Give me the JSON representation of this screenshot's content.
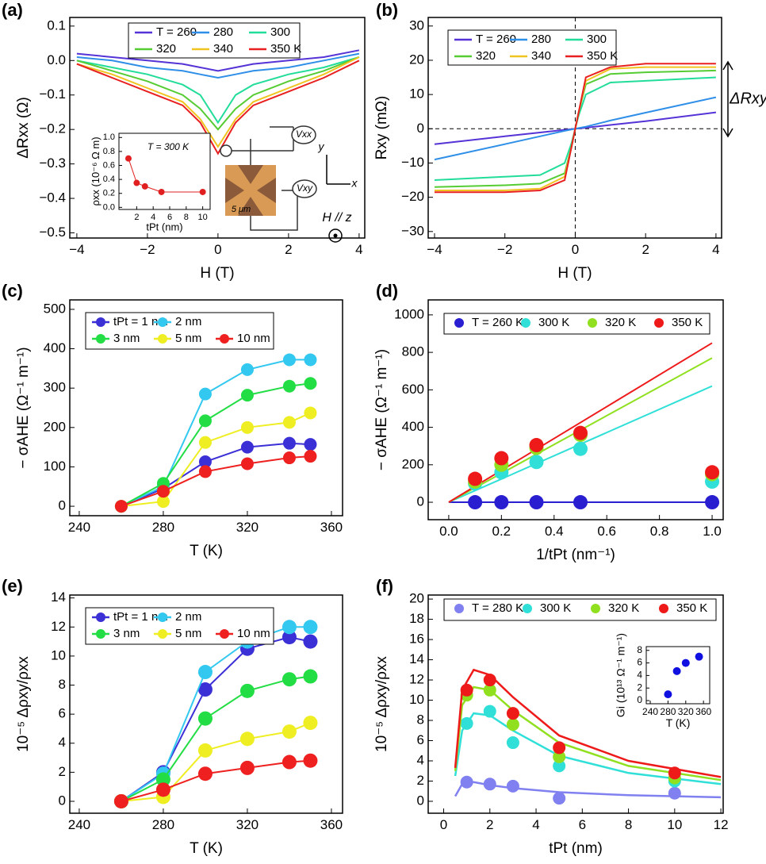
{
  "chart_data": [
    {
      "type": "line",
      "panel": "(a)",
      "xlabel": "H (T)",
      "ylabel": "ΔRxx (Ω)",
      "xlim": [
        -4.2,
        4.16
      ],
      "ylim": [
        -0.515,
        0.125
      ],
      "xticks": [
        {
          "value": -4,
          "label": "−4"
        },
        {
          "value": -2,
          "label": "−2"
        },
        0,
        2,
        4
      ],
      "yticks": [
        0.1,
        {
          "value": 0,
          "label": "0.0"
        },
        {
          "value": -0.1,
          "label": "−0.1"
        },
        {
          "value": -0.2,
          "label": "−0.2"
        },
        {
          "value": -0.3,
          "label": "−0.3"
        },
        {
          "value": -0.4,
          "label": "−0.4"
        },
        {
          "value": -0.5,
          "label": "−0.5"
        }
      ],
      "x": [
        -4,
        -3,
        -2,
        -1,
        -0.5,
        0,
        0.5,
        1,
        2,
        3,
        4
      ],
      "series": [
        {
          "name": "T = 260",
          "color": "#5533d6",
          "values": [
            0.02,
            0.01,
            0,
            -0.01,
            -0.02,
            -0.03,
            -0.02,
            -0.01,
            0,
            0.01,
            0.03
          ]
        },
        {
          "name": "280",
          "color": "#2f8fe8",
          "values": [
            0.01,
            0,
            -0.02,
            -0.03,
            -0.04,
            -0.05,
            -0.04,
            -0.03,
            -0.02,
            0,
            0.02
          ]
        },
        {
          "name": "300",
          "color": "#22dd99",
          "values": [
            0,
            -0.02,
            -0.04,
            -0.07,
            -0.1,
            -0.18,
            -0.1,
            -0.07,
            -0.04,
            -0.02,
            0.01
          ]
        },
        {
          "name": "320",
          "color": "#55cc33",
          "values": [
            0,
            -0.03,
            -0.06,
            -0.1,
            -0.14,
            -0.2,
            -0.14,
            -0.1,
            -0.06,
            -0.03,
            0.01
          ]
        },
        {
          "name": "340",
          "color": "#f0c420",
          "values": [
            -0.01,
            -0.04,
            -0.08,
            -0.12,
            -0.17,
            -0.25,
            -0.17,
            -0.12,
            -0.08,
            -0.04,
            0.01
          ]
        },
        {
          "name": "350 K",
          "color": "#e82020",
          "values": [
            -0.01,
            -0.05,
            -0.09,
            -0.13,
            -0.18,
            -0.27,
            -0.18,
            -0.13,
            -0.09,
            -0.05,
            0
          ]
        }
      ],
      "annotations": [
        "Vxx",
        "Vxy",
        "5 μm",
        "y",
        "x",
        "H // z"
      ],
      "inset": {
        "type": "line",
        "markers": true,
        "xlabel": "tPt (nm)",
        "ylabel": "ρxx (10⁻⁶ Ω m)",
        "xlim": [
          -0.15,
          10.9
        ],
        "ylim": [
          -0.03,
          1.06
        ],
        "xticks": [
          2,
          4,
          6,
          8,
          10
        ],
        "yticks": [
          {
            "value": 0,
            "label": "0.0"
          },
          0.2,
          0.4,
          0.6,
          0.8,
          {
            "value": 1,
            "label": "1.0"
          }
        ],
        "x": [
          1,
          2,
          3,
          5,
          10
        ],
        "series": [
          {
            "color": "#e02020",
            "values": [
              0.7,
              0.35,
              0.3,
              0.22,
              0.22
            ]
          }
        ],
        "annotations": [
          "T = 300 K"
        ]
      }
    },
    {
      "type": "line",
      "panel": "(b)",
      "xlabel": "H (T)",
      "ylabel": "Rxy (mΩ)",
      "xlim": [
        -4.18,
        4.16
      ],
      "ylim": [
        -31.9,
        32.5
      ],
      "zero_lines": true,
      "xticks": [
        {
          "value": -4,
          "label": "−4"
        },
        {
          "value": -2,
          "label": "−2"
        },
        0,
        2,
        4
      ],
      "yticks": [
        {
          "value": -30,
          "label": "−30"
        },
        {
          "value": -20,
          "label": "−20"
        },
        {
          "value": -10,
          "label": "−10"
        },
        0,
        10,
        20,
        30
      ],
      "x": [
        -4,
        -2,
        -1,
        -0.3,
        -0.1,
        0,
        0.1,
        0.3,
        1,
        2,
        4
      ],
      "series": [
        {
          "name": "T = 260",
          "color": "#5533d6",
          "values": [
            -4.5,
            -2.2,
            -1.1,
            -0.3,
            -0.1,
            0,
            0.1,
            0.3,
            1.1,
            2.2,
            4.8
          ]
        },
        {
          "name": "280",
          "color": "#2f8fe8",
          "values": [
            -9,
            -4.5,
            -2.2,
            -0.6,
            -0.2,
            0,
            0.2,
            0.6,
            2.4,
            4.7,
            9.2
          ]
        },
        {
          "name": "300",
          "color": "#22dd99",
          "values": [
            -15,
            -14,
            -13.5,
            -10,
            -4,
            0,
            4,
            10,
            13.5,
            14,
            15
          ]
        },
        {
          "name": "320",
          "color": "#55cc33",
          "values": [
            -17,
            -16.5,
            -16,
            -13,
            -5,
            0,
            5,
            13,
            16,
            16.5,
            17
          ]
        },
        {
          "name": "340",
          "color": "#f0c420",
          "values": [
            -18,
            -18,
            -17.5,
            -14,
            -5,
            0,
            5,
            14,
            17.5,
            18,
            18
          ]
        },
        {
          "name": "350 K",
          "color": "#e82020",
          "values": [
            -18.5,
            -18.5,
            -18,
            -15,
            -5,
            0,
            5,
            15,
            18,
            19,
            19
          ]
        }
      ],
      "annotations": [
        "ΔRxy"
      ]
    },
    {
      "type": "line",
      "markers": true,
      "panel": "(c)",
      "xlabel": "T (K)",
      "ylabel": "− σAHE (Ω⁻¹ m⁻¹)",
      "xlim": [
        235.5,
        365.3
      ],
      "ylim": [
        -24,
        524
      ],
      "xticks": [
        240,
        280,
        320,
        360
      ],
      "yticks": [
        0,
        100,
        200,
        300,
        400,
        500
      ],
      "x": [
        260,
        280,
        300,
        320,
        340,
        350
      ],
      "series": [
        {
          "name": "tPt = 1 nm",
          "color": "#3b2fd6",
          "values": [
            0,
            45,
            113,
            150,
            160,
            157
          ]
        },
        {
          "name": "2 nm",
          "color": "#33c8f0",
          "values": [
            0,
            50,
            285,
            347,
            372,
            372
          ]
        },
        {
          "name": "3 nm",
          "color": "#22dd44",
          "values": [
            0,
            58,
            217,
            282,
            305,
            312
          ]
        },
        {
          "name": "5 nm",
          "color": "#eeee22",
          "values": [
            0,
            12,
            162,
            200,
            213,
            237
          ]
        },
        {
          "name": "10 nm",
          "color": "#ee2020",
          "values": [
            0,
            38,
            88,
            108,
            123,
            127
          ]
        }
      ]
    },
    {
      "type": "scatter",
      "panel": "(d)",
      "xlabel": "1/tPt (nm⁻¹)",
      "ylabel": "− σAHE (Ω⁻¹ m⁻¹)",
      "xlim": [
        -0.078,
        1.042
      ],
      "ylim": [
        -93,
        1080
      ],
      "xticks": [
        {
          "value": 0,
          "label": "0.0"
        },
        0.2,
        0.4,
        0.6,
        0.8,
        {
          "value": 1,
          "label": "1.0"
        }
      ],
      "yticks": [
        0,
        200,
        400,
        600,
        800,
        1000
      ],
      "x": [
        0.1,
        0.2,
        0.333,
        0.5,
        1
      ],
      "series": [
        {
          "name": "T = 260 K",
          "color": "#2a1fd0",
          "values": [
            0,
            0,
            0,
            0,
            0
          ]
        },
        {
          "name": "300 K",
          "color": "#30e0d8",
          "values": [
            100,
            160,
            215,
            285,
            110
          ]
        },
        {
          "name": "320 K",
          "color": "#90e020",
          "values": [
            110,
            200,
            290,
            360,
            150
          ]
        },
        {
          "name": "350 K",
          "color": "#ee1a1a",
          "values": [
            125,
            235,
            305,
            370,
            160
          ]
        }
      ],
      "fits": [
        {
          "color": "#2a1fd0",
          "x": [
            0,
            1
          ],
          "values": [
            0,
            0
          ]
        },
        {
          "color": "#30e0d8",
          "x": [
            0,
            1
          ],
          "values": [
            0,
            620
          ]
        },
        {
          "color": "#90e020",
          "x": [
            0,
            1
          ],
          "values": [
            0,
            770
          ]
        },
        {
          "color": "#ee1a1a",
          "x": [
            0,
            1
          ],
          "values": [
            0,
            850
          ]
        }
      ]
    },
    {
      "type": "line",
      "markers": true,
      "panel": "(e)",
      "xlabel": "T (K)",
      "ylabel": "10⁻⁵ Δρxy/ρxx",
      "xlim": [
        235.5,
        365.3
      ],
      "ylim": [
        -0.82,
        14.2
      ],
      "xticks": [
        240,
        280,
        320,
        360
      ],
      "yticks": [
        0,
        2,
        4,
        6,
        8,
        10,
        12,
        14
      ],
      "x": [
        260,
        280,
        300,
        320,
        340,
        350
      ],
      "series": [
        {
          "name": "tPt = 1 nm",
          "color": "#3b2fd6",
          "values": [
            0,
            2,
            7.7,
            10.5,
            11.3,
            11
          ]
        },
        {
          "name": "2 nm",
          "color": "#33c8f0",
          "values": [
            0,
            1.9,
            8.9,
            11,
            12,
            12
          ]
        },
        {
          "name": "3 nm",
          "color": "#22dd44",
          "values": [
            0,
            1.5,
            5.7,
            7.6,
            8.4,
            8.6
          ]
        },
        {
          "name": "5 nm",
          "color": "#eeee22",
          "values": [
            0,
            0.3,
            3.5,
            4.3,
            4.8,
            5.4
          ]
        },
        {
          "name": "10 nm",
          "color": "#ee2020",
          "values": [
            0,
            0.8,
            1.9,
            2.3,
            2.7,
            2.8
          ]
        }
      ]
    },
    {
      "type": "scatter",
      "panel": "(f)",
      "xlabel": "tPt (nm)",
      "ylabel": "10⁻⁵ Δρxy/ρxx",
      "xlim": [
        -0.67,
        12.1
      ],
      "ylim": [
        -1.18,
        20.4
      ],
      "xticks": [
        0,
        2,
        4,
        6,
        8,
        10,
        12
      ],
      "yticks": [
        0,
        2,
        4,
        6,
        8,
        10,
        12,
        14,
        16,
        18,
        20
      ],
      "x": [
        1,
        2,
        3,
        5,
        10
      ],
      "curve_x": [
        0.5,
        0.8,
        1.3,
        2,
        3,
        5,
        8,
        12
      ],
      "series": [
        {
          "name": "T = 280 K",
          "color": "#8080f0",
          "values": [
            1.9,
            1.7,
            1.5,
            0.3,
            0.8
          ],
          "curve": [
            0.5,
            1.7,
            1.9,
            1.6,
            1.3,
            0.9,
            0.6,
            0.4
          ]
        },
        {
          "name": "300 K",
          "color": "#30e0d8",
          "values": [
            7.7,
            8.9,
            5.8,
            3.5,
            2
          ],
          "curve": [
            2.5,
            7,
            8.7,
            8.5,
            7,
            4.5,
            2.8,
            1.7
          ]
        },
        {
          "name": "320 K",
          "color": "#90e020",
          "values": [
            10.5,
            11,
            7.6,
            4.4,
            2.3
          ],
          "curve": [
            3,
            9.5,
            11.3,
            11,
            9,
            5.8,
            3.5,
            2.1
          ]
        },
        {
          "name": "350 K",
          "color": "#ee1a1a",
          "values": [
            11,
            12,
            8.7,
            5.3,
            2.8
          ],
          "curve": [
            3.3,
            11,
            13,
            12.5,
            10.3,
            6.5,
            4,
            2.4
          ]
        }
      ],
      "inset": {
        "type": "scatter",
        "xlabel": "T (K)",
        "ylabel": "Gi (10¹³ Ω⁻¹ m⁻¹)",
        "xlim": [
          231,
          374
        ],
        "ylim": [
          -0.5,
          8.6
        ],
        "xticks": [
          240,
          280,
          320,
          360
        ],
        "yticks": [
          0,
          2,
          4,
          6,
          8
        ],
        "x": [
          280,
          300,
          320,
          350
        ],
        "series": [
          {
            "color": "#1010e0",
            "values": [
              1,
              4.7,
              6,
              7
            ]
          }
        ]
      }
    }
  ]
}
